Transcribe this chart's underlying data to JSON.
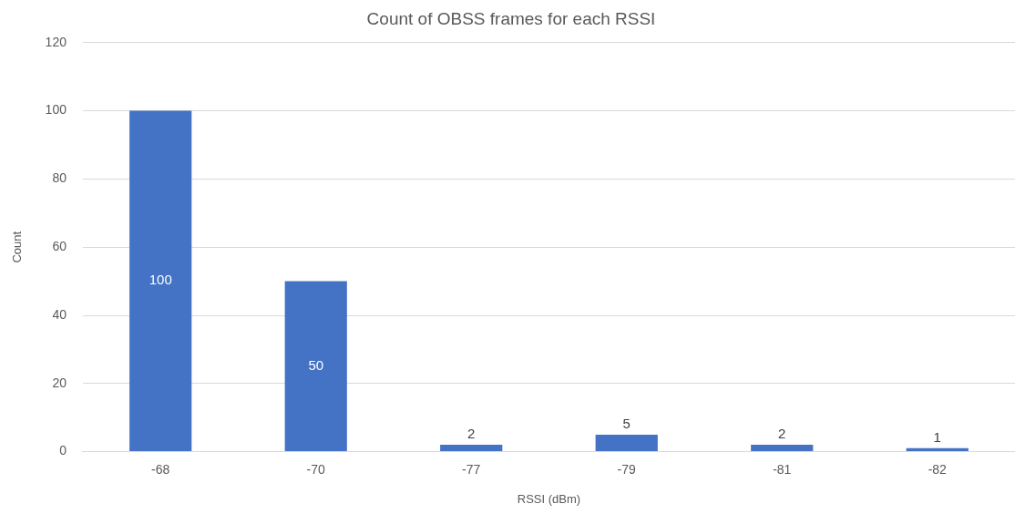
{
  "chart_data": {
    "type": "bar",
    "title": "Count of OBSS frames for each RSSI",
    "xlabel": "RSSI (dBm)",
    "ylabel": "Count",
    "categories": [
      "-68",
      "-70",
      "-77",
      "-79",
      "-81",
      "-82"
    ],
    "values": [
      100,
      50,
      2,
      5,
      2,
      1
    ],
    "color": "#4472c4",
    "ylim": [
      0,
      120
    ],
    "yticks": [
      0,
      20,
      40,
      60,
      80,
      100,
      120
    ],
    "grid": "y",
    "data_labels": true,
    "legend": false
  }
}
